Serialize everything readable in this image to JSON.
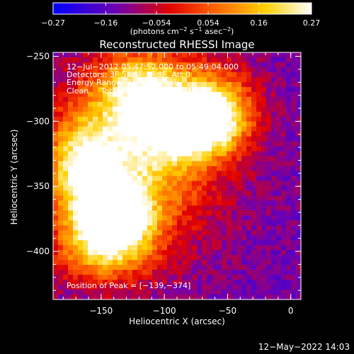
{
  "chart_data": {
    "type": "heatmap",
    "title": "Reconstructed RHESSI Image",
    "xlabel": "Heliocentric X (arcsec)",
    "ylabel": "Heliocentric Y (arcsec)",
    "xlim": [
      -188,
      8
    ],
    "ylim": [
      -437,
      -247
    ],
    "x_ticks": [
      -150,
      -100,
      -50,
      0
    ],
    "x_tick_labels": [
      "−150",
      "−100",
      "−50",
      "0"
    ],
    "y_ticks": [
      -250,
      -300,
      -350,
      -400
    ],
    "y_tick_labels": [
      "−250",
      "−300",
      "−350",
      "−400"
    ],
    "colorbar": {
      "range": [
        -0.27,
        0.27
      ],
      "tick_values": [
        -0.27,
        -0.16,
        -0.054,
        0.054,
        0.16,
        0.27
      ],
      "tick_labels": [
        "−0.27",
        "−0.16",
        "−0.054",
        "0.054",
        "0.16",
        "0.27"
      ],
      "colors": [
        "#0000ff",
        "#7000b0",
        "#e00000",
        "#ff6000",
        "#ffd000",
        "#ffffff"
      ]
    },
    "info_lines": [
      "12−Jul−2012 05:47:52.000 to 05:49:04.000",
      "Detectors: 3F 5F 6F 7F 8F, Att 0",
      "Energy Range: 3.0 − 6.0 keV",
      "Clean     Total counts: 1.02E+04"
    ],
    "peak_note": "Position of Peak = [−139,−374]",
    "peak": [
      -139,
      -374
    ],
    "sources": [
      {
        "x": -140,
        "y": -372,
        "amp": 0.27,
        "sx": 20,
        "sy": 18
      },
      {
        "x": -80,
        "y": -303,
        "amp": 0.25,
        "sx": 24,
        "sy": 17
      },
      {
        "x": -120,
        "y": -325,
        "amp": 0.18,
        "sx": 42,
        "sy": 46
      },
      {
        "x": -165,
        "y": -335,
        "amp": 0.15,
        "sx": 20,
        "sy": 26
      },
      {
        "x": -115,
        "y": -275,
        "amp": 0.13,
        "sx": 26,
        "sy": 20
      },
      {
        "x": -150,
        "y": -400,
        "amp": 0.1,
        "sx": 28,
        "sy": 18
      },
      {
        "x": -55,
        "y": -290,
        "amp": 0.1,
        "sx": 20,
        "sy": 22
      }
    ],
    "background": -0.13,
    "noise": 0.045
  },
  "unit_prefix": "(photons cm",
  "unit_exp1": "−2",
  "unit_mid": " s",
  "unit_exp2": "−1",
  "unit_mid2": " asec",
  "unit_exp3": "−2",
  "unit_suffix": ")",
  "footer_date": "12−May−2022 14:03"
}
